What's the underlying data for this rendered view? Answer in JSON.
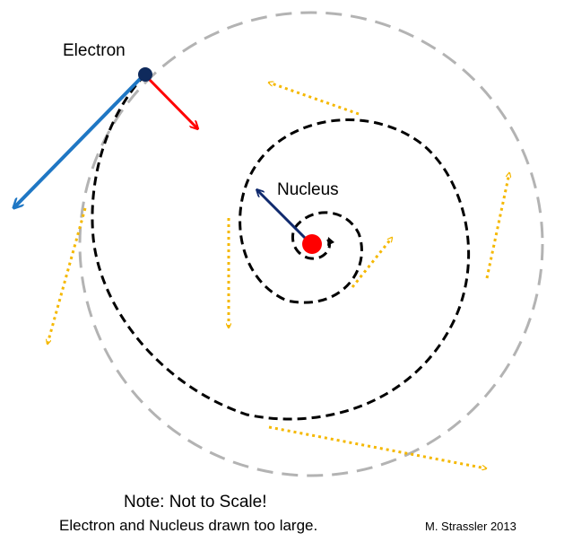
{
  "labels": {
    "electron": "Electron",
    "nucleus": "Nucleus",
    "note_title": "Note: Not to Scale!",
    "note_body": "Electron and Nucleus drawn too large.",
    "credit": "M. Strassler 2013"
  },
  "colors": {
    "outer_circle": "#b3b3b3",
    "spiral_path": "#000000",
    "electron": "#0f2a5c",
    "nucleus": "#ff0000",
    "electron_velocity_arrow": "#1f77c4",
    "electron_force_arrow": "#ff0000",
    "nucleus_arrow": "#102a6e",
    "radiation_arrows": "#f5b800"
  }
}
